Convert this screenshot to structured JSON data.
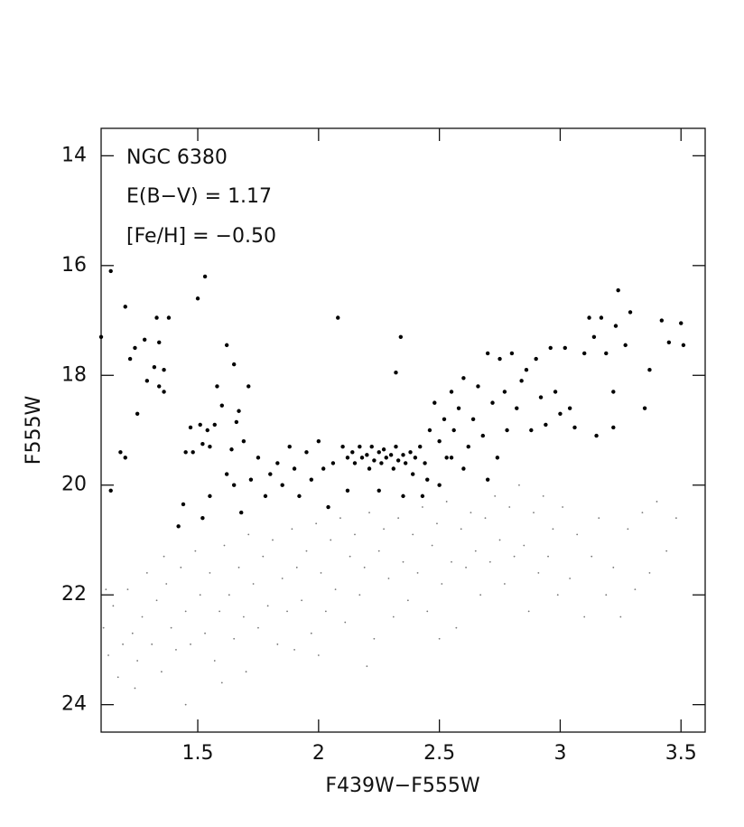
{
  "chart_data": {
    "type": "scatter",
    "annotations": [
      "NGC 6380",
      "E(B−V) = 1.17",
      "[Fe/H] = −0.50"
    ],
    "xlabel": "F439W−F555W",
    "ylabel": "F555W",
    "xlim": [
      1.1,
      3.6
    ],
    "ylim": [
      24.5,
      13.5
    ],
    "xticks": [
      1.5,
      2,
      2.5,
      3,
      3.5
    ],
    "yticks": [
      14,
      16,
      18,
      20,
      22,
      24
    ],
    "grid": false,
    "series": [
      {
        "color": "#000000",
        "marker_size": 2.2,
        "x": [
          1.1,
          1.14,
          1.14,
          1.2,
          1.22,
          1.24,
          1.25,
          1.28,
          1.29,
          1.32,
          1.33,
          1.34,
          1.36,
          1.36,
          1.38,
          1.34,
          1.18,
          1.2,
          1.42,
          1.44,
          1.45,
          1.47,
          1.48,
          1.5,
          1.53,
          1.51,
          1.52,
          1.54,
          1.55,
          1.57,
          1.58,
          1.6,
          1.62,
          1.64,
          1.65,
          1.66,
          1.67,
          1.69,
          1.71,
          1.52,
          1.55,
          1.62,
          1.65,
          1.68,
          1.72,
          1.75,
          1.78,
          1.8,
          1.83,
          1.85,
          1.88,
          1.9,
          1.92,
          1.95,
          1.97,
          2.0,
          2.02,
          2.04,
          2.06,
          2.08,
          2.1,
          2.12,
          2.12,
          2.14,
          2.15,
          2.17,
          2.18,
          2.2,
          2.21,
          2.22,
          2.23,
          2.25,
          2.26,
          2.27,
          2.28,
          2.3,
          2.31,
          2.32,
          2.33,
          2.34,
          2.35,
          2.36,
          2.38,
          2.39,
          2.4,
          2.42,
          2.44,
          2.32,
          2.45,
          2.43,
          2.46,
          2.48,
          2.5,
          2.52,
          2.53,
          2.55,
          2.56,
          2.58,
          2.6,
          2.62,
          2.64,
          2.66,
          2.68,
          2.7,
          2.72,
          2.74,
          2.75,
          2.77,
          2.78,
          2.8,
          2.82,
          2.84,
          2.86,
          2.88,
          2.9,
          2.92,
          2.94,
          2.96,
          2.98,
          3.0,
          3.02,
          3.04,
          3.06,
          3.1,
          3.12,
          3.14,
          3.17,
          3.19,
          3.22,
          3.23,
          3.24,
          3.27,
          3.29,
          3.35,
          3.37,
          3.42,
          3.45,
          3.5,
          3.51,
          3.22,
          3.15,
          2.7,
          2.6,
          2.5,
          2.35,
          2.25,
          2.55
        ],
        "values": [
          17.3,
          16.1,
          20.1,
          16.75,
          17.7,
          17.5,
          18.7,
          17.35,
          18.1,
          17.85,
          16.95,
          17.4,
          18.3,
          17.9,
          16.95,
          18.2,
          19.4,
          19.5,
          20.75,
          20.35,
          19.4,
          18.95,
          19.4,
          16.6,
          16.2,
          18.9,
          19.25,
          19.0,
          19.3,
          18.9,
          18.2,
          18.55,
          17.45,
          19.35,
          17.8,
          18.85,
          18.65,
          19.2,
          18.2,
          20.6,
          20.2,
          19.8,
          20.0,
          20.5,
          19.9,
          19.5,
          20.2,
          19.8,
          19.6,
          20.0,
          19.3,
          19.7,
          20.2,
          19.4,
          19.9,
          19.2,
          19.7,
          20.4,
          19.6,
          16.95,
          19.3,
          20.1,
          19.5,
          19.4,
          19.6,
          19.3,
          19.5,
          19.45,
          19.7,
          19.3,
          19.55,
          19.4,
          19.6,
          19.35,
          19.5,
          19.45,
          19.7,
          19.3,
          19.55,
          17.3,
          19.45,
          19.6,
          19.4,
          19.8,
          19.5,
          19.3,
          19.6,
          17.95,
          19.9,
          20.2,
          19.0,
          18.5,
          19.2,
          18.8,
          19.5,
          18.3,
          19.0,
          18.6,
          18.05,
          19.3,
          18.8,
          18.2,
          19.1,
          17.6,
          18.5,
          19.5,
          17.7,
          18.3,
          19.0,
          17.6,
          18.6,
          18.1,
          17.9,
          19.0,
          17.7,
          18.4,
          18.9,
          17.5,
          18.3,
          18.7,
          17.5,
          18.6,
          18.95,
          17.6,
          16.95,
          17.3,
          16.95,
          17.6,
          18.3,
          17.1,
          16.45,
          17.45,
          16.85,
          18.6,
          17.9,
          17.0,
          17.4,
          17.05,
          17.45,
          18.95,
          19.1,
          19.9,
          19.7,
          20.0,
          20.2,
          20.1,
          19.5
        ]
      },
      {
        "color": "#777777",
        "marker_size": 0.9,
        "x": [
          1.11,
          1.13,
          1.15,
          1.17,
          1.19,
          1.21,
          1.23,
          1.25,
          1.27,
          1.29,
          1.31,
          1.33,
          1.35,
          1.37,
          1.39,
          1.41,
          1.43,
          1.45,
          1.47,
          1.49,
          1.51,
          1.53,
          1.55,
          1.57,
          1.59,
          1.61,
          1.63,
          1.65,
          1.67,
          1.69,
          1.71,
          1.73,
          1.75,
          1.77,
          1.79,
          1.81,
          1.83,
          1.85,
          1.87,
          1.89,
          1.91,
          1.93,
          1.95,
          1.97,
          1.99,
          2.01,
          2.03,
          2.05,
          2.07,
          2.09,
          2.11,
          2.13,
          2.15,
          2.17,
          2.19,
          2.21,
          2.23,
          2.25,
          2.27,
          2.29,
          2.31,
          2.33,
          2.35,
          2.37,
          2.39,
          2.41,
          2.43,
          2.45,
          2.47,
          2.49,
          2.51,
          2.53,
          2.55,
          2.57,
          2.59,
          2.61,
          2.63,
          2.65,
          2.67,
          2.69,
          2.71,
          2.73,
          2.75,
          2.77,
          2.79,
          2.81,
          2.83,
          2.85,
          2.87,
          2.89,
          2.91,
          2.93,
          2.95,
          2.97,
          2.99,
          3.01,
          3.04,
          3.07,
          3.1,
          3.13,
          3.16,
          3.19,
          3.22,
          3.25,
          3.28,
          3.31,
          3.34,
          3.37,
          3.4,
          3.44,
          3.48,
          1.12,
          1.24,
          1.45,
          1.6,
          1.9,
          2.2,
          2.5,
          1.36,
          1.7,
          2.0
        ],
        "values": [
          22.6,
          23.1,
          22.2,
          23.5,
          22.9,
          21.9,
          22.7,
          23.2,
          22.4,
          21.6,
          22.9,
          22.1,
          23.4,
          21.8,
          22.6,
          23.0,
          21.5,
          22.3,
          22.9,
          21.2,
          22.0,
          22.7,
          21.6,
          23.2,
          22.3,
          21.1,
          22.0,
          22.8,
          21.5,
          22.4,
          20.9,
          21.8,
          22.6,
          21.3,
          22.2,
          21.0,
          22.9,
          21.7,
          22.3,
          20.8,
          21.5,
          22.1,
          21.2,
          22.7,
          20.7,
          21.6,
          22.3,
          21.0,
          21.9,
          20.6,
          22.5,
          21.3,
          20.9,
          22.0,
          21.5,
          20.5,
          22.8,
          21.2,
          20.8,
          21.7,
          22.4,
          20.6,
          21.4,
          22.1,
          20.9,
          21.6,
          20.4,
          22.3,
          21.1,
          20.7,
          21.8,
          20.3,
          21.4,
          22.6,
          20.8,
          21.5,
          20.5,
          21.2,
          22.0,
          20.6,
          21.4,
          20.2,
          21.0,
          21.8,
          20.4,
          21.3,
          20.0,
          21.1,
          22.3,
          20.5,
          21.6,
          20.2,
          21.3,
          20.8,
          22.0,
          20.4,
          21.7,
          20.9,
          22.4,
          21.3,
          20.6,
          22.0,
          21.5,
          22.4,
          20.8,
          21.9,
          20.5,
          21.6,
          20.3,
          21.2,
          20.6,
          21.9,
          23.7,
          24.0,
          23.6,
          23.0,
          23.3,
          22.8,
          21.3,
          23.4,
          23.1
        ]
      }
    ]
  }
}
